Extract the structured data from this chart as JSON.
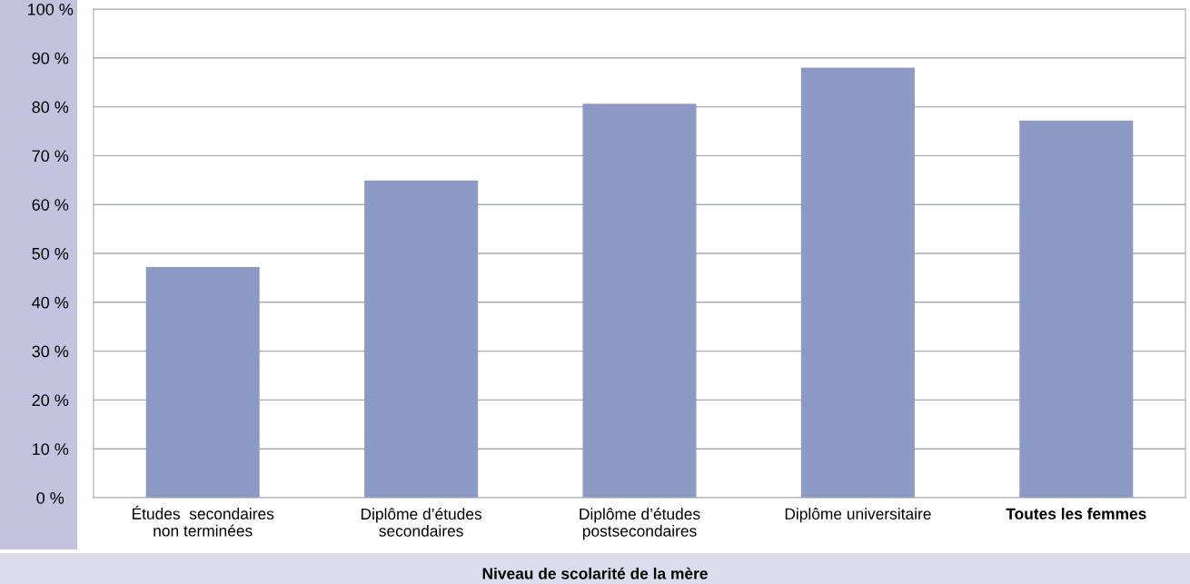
{
  "chart_data": {
    "type": "bar",
    "xlabel": "Niveau de scolarité de la mère",
    "categories": [
      "Études  secondaires\nnon terminées",
      "Diplôme d’études\nsecondaires",
      "Diplôme d’études\npostsecondaires",
      "Diplôme universitaire",
      "Toutes les femmes"
    ],
    "values": [
      47.2,
      64.9,
      80.6,
      88.0,
      77.2
    ],
    "color": "#8c99c4",
    "ylim": [
      0,
      100
    ],
    "yticks": [
      {
        "value": 0,
        "label": "0 %"
      },
      {
        "value": 10,
        "label": "10 %"
      },
      {
        "value": 20,
        "label": "20 %"
      },
      {
        "value": 30,
        "label": "30 %"
      },
      {
        "value": 40,
        "label": "40 %"
      },
      {
        "value": 50,
        "label": "50 %"
      },
      {
        "value": 60,
        "label": "60 %"
      },
      {
        "value": 70,
        "label": "70 %"
      },
      {
        "value": 80,
        "label": "80 %"
      },
      {
        "value": 90,
        "label": "90 %"
      },
      {
        "value": 100,
        "label": "100 %"
      }
    ],
    "grid": "y"
  }
}
